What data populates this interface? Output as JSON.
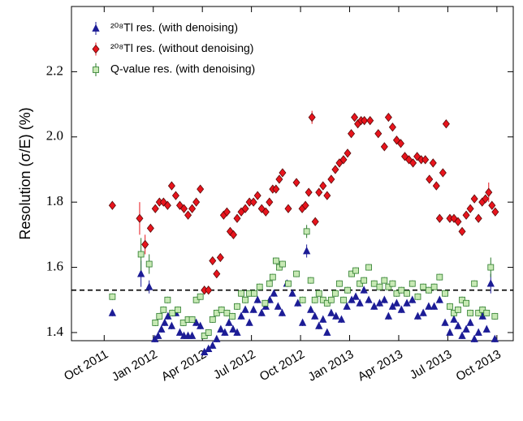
{
  "chart_data": {
    "type": "scatter",
    "y_label": "Resolution (σ/E) (%)",
    "xlim": [
      "2011-08",
      "2013-11"
    ],
    "ylim": [
      1.375,
      2.4
    ],
    "xticks": [
      {
        "value": "2011-10",
        "label": "Oct 2011"
      },
      {
        "value": "2012-01",
        "label": "Jan 2012"
      },
      {
        "value": "2012-04",
        "label": "Apr 2012"
      },
      {
        "value": "2012-07",
        "label": "Jul 2012"
      },
      {
        "value": "2012-10",
        "label": "Oct 2012"
      },
      {
        "value": "2013-01",
        "label": "Jan 2013"
      },
      {
        "value": "2013-04",
        "label": "Apr 2013"
      },
      {
        "value": "2013-07",
        "label": "Jul 2013"
      },
      {
        "value": "2013-10",
        "label": "Oct 2013"
      }
    ],
    "yticks": [
      1.4,
      1.6,
      1.8,
      {
        "value": 2,
        "label": "2.0"
      },
      2.2
    ],
    "reference_line": 1.53,
    "legend": "upper left",
    "series": [
      {
        "name": "²⁰⁸Tl res. (with denoising)",
        "marker": "triangle",
        "color": "#1c1c96",
        "edgecolor": "#1c1c96",
        "x": [
          "2011-10",
          "2011-12",
          "2011-12",
          "2012-01",
          "2012-01",
          "2012-01",
          "2012-01",
          "2012-01",
          "2012-02",
          "2012-02",
          "2012-02",
          "2012-02",
          "2012-03",
          "2012-03",
          "2012-03",
          "2012-03",
          "2012-04",
          "2012-04",
          "2012-04",
          "2012-04",
          "2012-05",
          "2012-05",
          "2012-05",
          "2012-05",
          "2012-06",
          "2012-06",
          "2012-06",
          "2012-06",
          "2012-07",
          "2012-07",
          "2012-07",
          "2012-07",
          "2012-08",
          "2012-08",
          "2012-08",
          "2012-08",
          "2012-09",
          "2012-09",
          "2012-09",
          "2012-10",
          "2012-10",
          "2012-10",
          "2012-10",
          "2012-11",
          "2012-11",
          "2012-11",
          "2012-11",
          "2012-12",
          "2012-12",
          "2012-12",
          "2013-01",
          "2013-01",
          "2013-01",
          "2013-01",
          "2013-02",
          "2013-02",
          "2013-02",
          "2013-03",
          "2013-03",
          "2013-03",
          "2013-03",
          "2013-04",
          "2013-04",
          "2013-04",
          "2013-05",
          "2013-05",
          "2013-05",
          "2013-06",
          "2013-06",
          "2013-06",
          "2013-07",
          "2013-07",
          "2013-07",
          "2013-07",
          "2013-08",
          "2013-08",
          "2013-08",
          "2013-08",
          "2013-09",
          "2013-09",
          "2013-09",
          "2013-09"
        ],
        "values": [
          1.46,
          1.58,
          1.54,
          1.38,
          1.39,
          1.41,
          1.43,
          1.45,
          1.42,
          1.46,
          1.4,
          1.39,
          1.39,
          1.39,
          1.43,
          1.42,
          1.34,
          1.35,
          1.36,
          1.38,
          1.41,
          1.4,
          1.43,
          1.41,
          1.4,
          1.45,
          1.47,
          1.43,
          1.47,
          1.5,
          1.46,
          1.48,
          1.5,
          1.52,
          1.48,
          1.46,
          1.55,
          1.52,
          1.49,
          1.43,
          1.65,
          1.47,
          1.45,
          1.42,
          1.44,
          1.4,
          1.46,
          1.45,
          1.44,
          1.48,
          1.5,
          1.51,
          1.49,
          1.53,
          1.5,
          1.48,
          1.49,
          1.5,
          1.45,
          1.48,
          1.49,
          1.47,
          1.49,
          1.5,
          1.45,
          1.46,
          1.48,
          1.48,
          1.5,
          1.43,
          1.4,
          1.44,
          1.42,
          1.39,
          1.41,
          1.43,
          1.38,
          1.4,
          1.45,
          1.41,
          1.55,
          1.38
        ],
        "errors": [
          0.01,
          0.04,
          0.02,
          0.01,
          0.01,
          0.01,
          0.01,
          0.01,
          0.01,
          0.01,
          0.01,
          0.01,
          0.01,
          0.01,
          0.01,
          0.01,
          0.01,
          0.01,
          0.01,
          0.01,
          0.01,
          0.01,
          0.01,
          0.01,
          0.01,
          0.01,
          0.01,
          0.01,
          0.01,
          0.01,
          0.01,
          0.01,
          0.01,
          0.01,
          0.01,
          0.01,
          0.01,
          0.01,
          0.01,
          0.01,
          0.02,
          0.01,
          0.01,
          0.01,
          0.01,
          0.01,
          0.01,
          0.01,
          0.01,
          0.01,
          0.01,
          0.01,
          0.01,
          0.01,
          0.01,
          0.01,
          0.01,
          0.01,
          0.01,
          0.01,
          0.01,
          0.01,
          0.01,
          0.01,
          0.01,
          0.01,
          0.01,
          0.01,
          0.01,
          0.01,
          0.01,
          0.01,
          0.01,
          0.01,
          0.01,
          0.01,
          0.01,
          0.01,
          0.01,
          0.01,
          0.03,
          0.01
        ]
      },
      {
        "name": "²⁰⁸Tl res. (without denoising)",
        "marker": "diamond",
        "color": "#e8141c",
        "edgecolor": "#5a0a0a",
        "x": [
          "2011-10",
          "2011-12",
          "2011-12",
          "2011-12",
          "2012-01",
          "2012-01",
          "2012-01",
          "2012-01",
          "2012-02",
          "2012-02",
          "2012-02",
          "2012-02",
          "2012-03",
          "2012-03",
          "2012-03",
          "2012-03",
          "2012-04",
          "2012-04",
          "2012-04",
          "2012-04",
          "2012-05",
          "2012-05",
          "2012-05",
          "2012-05",
          "2012-05",
          "2012-06",
          "2012-06",
          "2012-06",
          "2012-06",
          "2012-07",
          "2012-07",
          "2012-07",
          "2012-07",
          "2012-08",
          "2012-08",
          "2012-08",
          "2012-08",
          "2012-08",
          "2012-09",
          "2012-09",
          "2012-10",
          "2012-10",
          "2012-10",
          "2012-10",
          "2012-10",
          "2012-11",
          "2012-11",
          "2012-11",
          "2012-11",
          "2012-12",
          "2012-12",
          "2012-12",
          "2012-12",
          "2013-01",
          "2013-01",
          "2013-01",
          "2013-01",
          "2013-01",
          "2013-02",
          "2013-02",
          "2013-03",
          "2013-03",
          "2013-03",
          "2013-03",
          "2013-04",
          "2013-04",
          "2013-04",
          "2013-04",
          "2013-05",
          "2013-05",
          "2013-05",
          "2013-05",
          "2013-06",
          "2013-06",
          "2013-06",
          "2013-06",
          "2013-06",
          "2013-07",
          "2013-07",
          "2013-07",
          "2013-07",
          "2013-08",
          "2013-08",
          "2013-08",
          "2013-08",
          "2013-09",
          "2013-09",
          "2013-09",
          "2013-09",
          "2013-09"
        ],
        "values": [
          1.79,
          1.75,
          1.67,
          1.72,
          1.78,
          1.8,
          1.8,
          1.79,
          1.85,
          1.82,
          1.79,
          1.78,
          1.76,
          1.78,
          1.8,
          1.84,
          1.53,
          1.53,
          1.62,
          1.58,
          1.63,
          1.76,
          1.77,
          1.71,
          1.7,
          1.75,
          1.77,
          1.78,
          1.8,
          1.8,
          1.82,
          1.78,
          1.77,
          1.8,
          1.84,
          1.84,
          1.87,
          1.89,
          1.78,
          1.86,
          1.78,
          1.79,
          1.83,
          2.06,
          1.74,
          1.83,
          1.85,
          1.82,
          1.87,
          1.9,
          1.92,
          1.93,
          1.95,
          2.01,
          2.06,
          2.04,
          2.05,
          2.05,
          2.05,
          2.01,
          1.97,
          2.06,
          2.03,
          1.99,
          1.98,
          1.94,
          1.93,
          1.92,
          1.94,
          1.93,
          1.93,
          1.87,
          1.92,
          1.85,
          1.75,
          1.89,
          2.04,
          1.75,
          1.75,
          1.74,
          1.71,
          1.76,
          1.78,
          1.81,
          1.75,
          1.8,
          1.81,
          1.83,
          1.79,
          1.77
        ],
        "errors": [
          0.01,
          0.05,
          0.03,
          0.01,
          0.01,
          0.01,
          0.01,
          0.01,
          0.01,
          0.01,
          0.01,
          0.01,
          0.01,
          0.01,
          0.01,
          0.01,
          0.01,
          0.01,
          0.01,
          0.01,
          0.01,
          0.01,
          0.01,
          0.01,
          0.01,
          0.01,
          0.01,
          0.01,
          0.01,
          0.01,
          0.01,
          0.01,
          0.01,
          0.01,
          0.01,
          0.01,
          0.01,
          0.01,
          0.01,
          0.01,
          0.01,
          0.01,
          0.01,
          0.02,
          0.01,
          0.01,
          0.01,
          0.01,
          0.01,
          0.01,
          0.01,
          0.01,
          0.01,
          0.01,
          0.01,
          0.01,
          0.01,
          0.01,
          0.01,
          0.01,
          0.01,
          0.01,
          0.01,
          0.01,
          0.01,
          0.01,
          0.01,
          0.01,
          0.01,
          0.01,
          0.01,
          0.01,
          0.01,
          0.01,
          0.01,
          0.01,
          0.01,
          0.01,
          0.01,
          0.01,
          0.01,
          0.01,
          0.01,
          0.01,
          0.01,
          0.01,
          0.01,
          0.03,
          0.01,
          0.01
        ]
      },
      {
        "name": "Q-value res. (with denoising)",
        "marker": "square",
        "color": "#c7e9b4",
        "edgecolor": "#2a7a2a",
        "x": [
          "2011-10",
          "2011-12",
          "2011-12",
          "2012-01",
          "2012-01",
          "2012-01",
          "2012-01",
          "2012-02",
          "2012-02",
          "2012-02",
          "2012-03",
          "2012-03",
          "2012-03",
          "2012-03",
          "2012-04",
          "2012-04",
          "2012-04",
          "2012-04",
          "2012-05",
          "2012-05",
          "2012-05",
          "2012-06",
          "2012-06",
          "2012-06",
          "2012-06",
          "2012-07",
          "2012-07",
          "2012-07",
          "2012-08",
          "2012-08",
          "2012-08",
          "2012-08",
          "2012-08",
          "2012-09",
          "2012-09",
          "2012-10",
          "2012-10",
          "2012-10",
          "2012-10",
          "2012-11",
          "2012-11",
          "2012-11",
          "2012-11",
          "2012-12",
          "2012-12",
          "2012-12",
          "2012-12",
          "2013-01",
          "2013-01",
          "2013-01",
          "2013-01",
          "2013-02",
          "2013-02",
          "2013-02",
          "2013-03",
          "2013-03",
          "2013-03",
          "2013-03",
          "2013-04",
          "2013-04",
          "2013-04",
          "2013-05",
          "2013-05",
          "2013-05",
          "2013-06",
          "2013-06",
          "2013-06",
          "2013-07",
          "2013-07",
          "2013-07",
          "2013-07",
          "2013-08",
          "2013-08",
          "2013-08",
          "2013-08",
          "2013-09",
          "2013-09",
          "2013-09",
          "2013-09"
        ],
        "values": [
          1.51,
          1.64,
          1.61,
          1.43,
          1.45,
          1.47,
          1.5,
          1.46,
          1.47,
          1.43,
          1.44,
          1.44,
          1.5,
          1.51,
          1.39,
          1.4,
          1.44,
          1.46,
          1.47,
          1.46,
          1.45,
          1.48,
          1.52,
          1.5,
          1.52,
          1.52,
          1.54,
          1.49,
          1.55,
          1.57,
          1.62,
          1.6,
          1.61,
          1.55,
          1.58,
          1.5,
          1.71,
          1.56,
          1.5,
          1.52,
          1.5,
          1.49,
          1.5,
          1.52,
          1.55,
          1.5,
          1.53,
          1.58,
          1.59,
          1.55,
          1.56,
          1.6,
          1.55,
          1.54,
          1.56,
          1.54,
          1.55,
          1.52,
          1.53,
          1.52,
          1.55,
          1.51,
          1.54,
          1.53,
          1.54,
          1.57,
          1.52,
          1.48,
          1.46,
          1.47,
          1.5,
          1.49,
          1.46,
          1.55,
          1.46,
          1.47,
          1.46,
          1.6,
          1.45
        ],
        "errors": [
          0.01,
          0.05,
          0.03,
          0.01,
          0.01,
          0.01,
          0.01,
          0.01,
          0.01,
          0.01,
          0.01,
          0.01,
          0.01,
          0.01,
          0.01,
          0.01,
          0.01,
          0.01,
          0.01,
          0.01,
          0.01,
          0.01,
          0.01,
          0.01,
          0.01,
          0.01,
          0.01,
          0.01,
          0.01,
          0.01,
          0.01,
          0.01,
          0.01,
          0.01,
          0.01,
          0.01,
          0.02,
          0.01,
          0.01,
          0.01,
          0.01,
          0.01,
          0.01,
          0.01,
          0.01,
          0.01,
          0.01,
          0.01,
          0.01,
          0.01,
          0.01,
          0.01,
          0.01,
          0.01,
          0.01,
          0.01,
          0.01,
          0.01,
          0.01,
          0.01,
          0.01,
          0.01,
          0.01,
          0.01,
          0.01,
          0.01,
          0.01,
          0.01,
          0.01,
          0.01,
          0.01,
          0.01,
          0.01,
          0.01,
          0.01,
          0.01,
          0.01,
          0.03,
          0.01
        ]
      }
    ]
  }
}
